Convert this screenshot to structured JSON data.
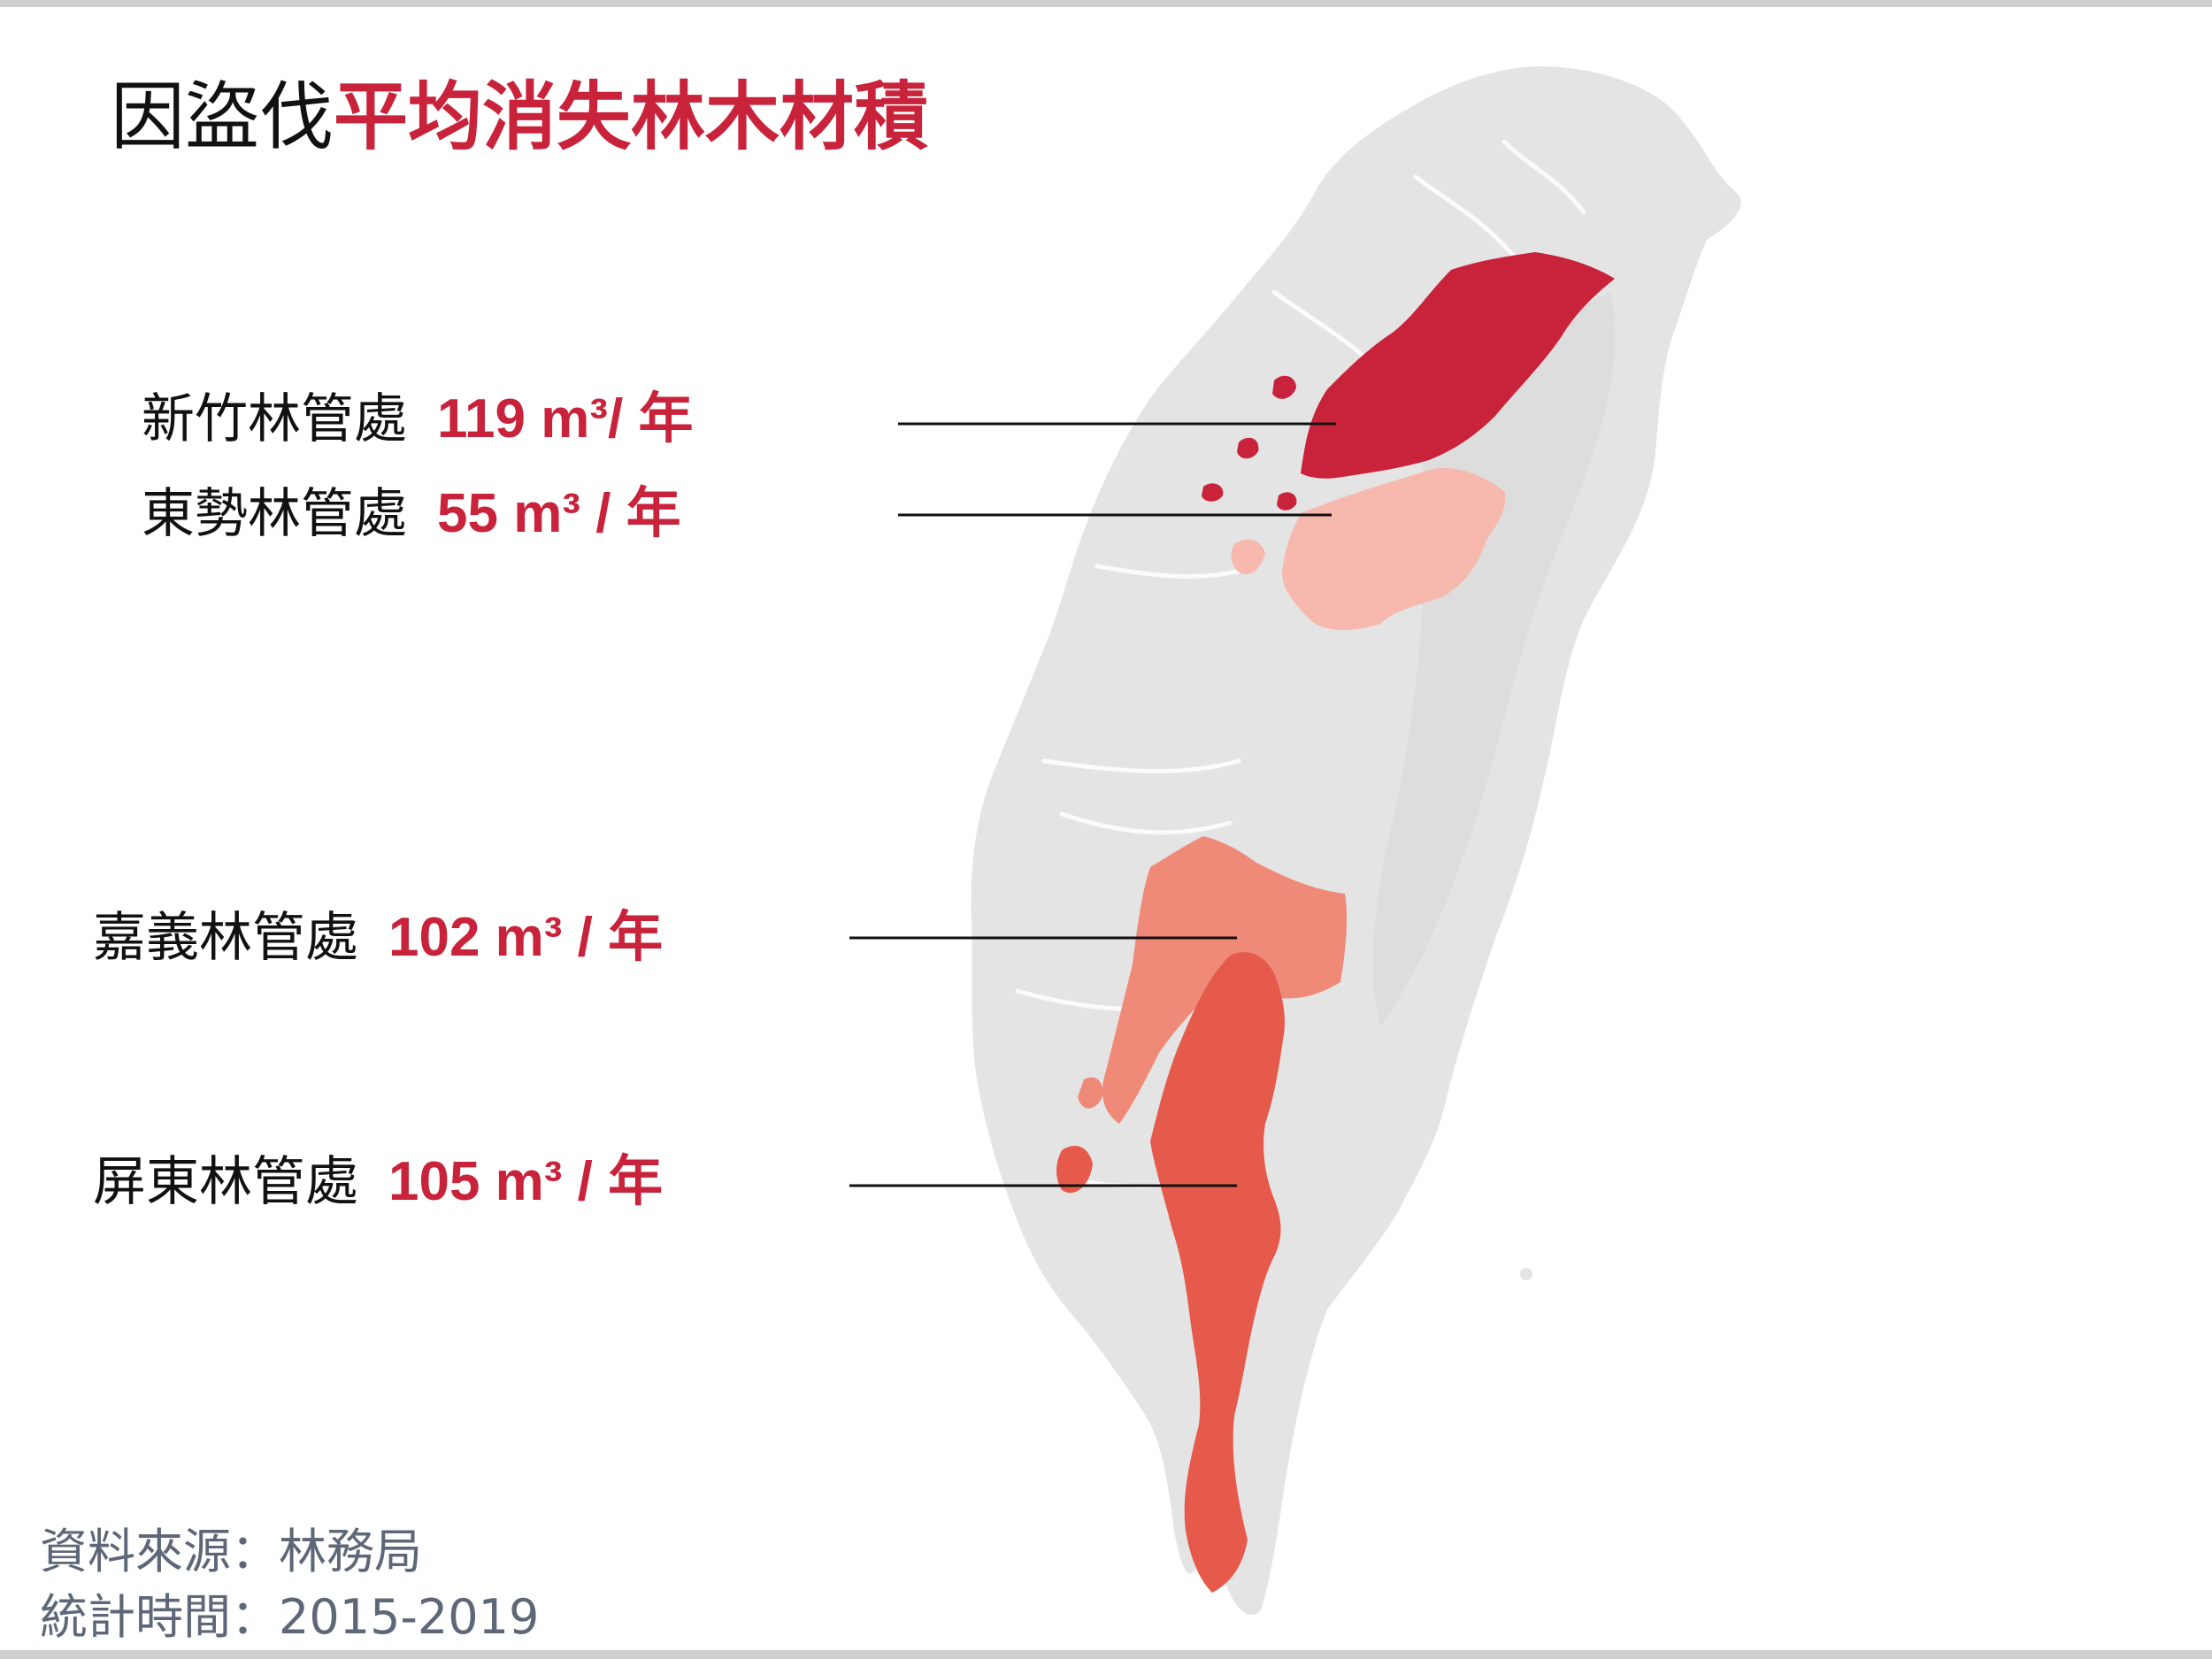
{
  "title": {
    "prefix": "因盜伐",
    "highlight": "平均消失林木材積"
  },
  "regions": [
    {
      "id": "hsinchu",
      "name": "新竹林管處",
      "value": "119 m³/ 年",
      "annual_m3": 119,
      "color": "#c8233b"
    },
    {
      "id": "dongshi",
      "name": "東勢林管處",
      "value": "55 m³ / 年",
      "annual_m3": 55,
      "color": "#f7b8ae"
    },
    {
      "id": "chiayi",
      "name": "嘉義林管處",
      "value": "102 m³ / 年",
      "annual_m3": 102,
      "color": "#ef8a78"
    },
    {
      "id": "pingtung",
      "name": "屏東林管處",
      "value": "105 m³ / 年",
      "annual_m3": 105,
      "color": "#e55a4b"
    }
  ],
  "colors": {
    "accent": "#c8233b",
    "land": "#e4e4e4",
    "river": "#ffffff"
  },
  "footer": {
    "source": "資料來源：林務局",
    "period": "統計時間：2015-2019"
  }
}
